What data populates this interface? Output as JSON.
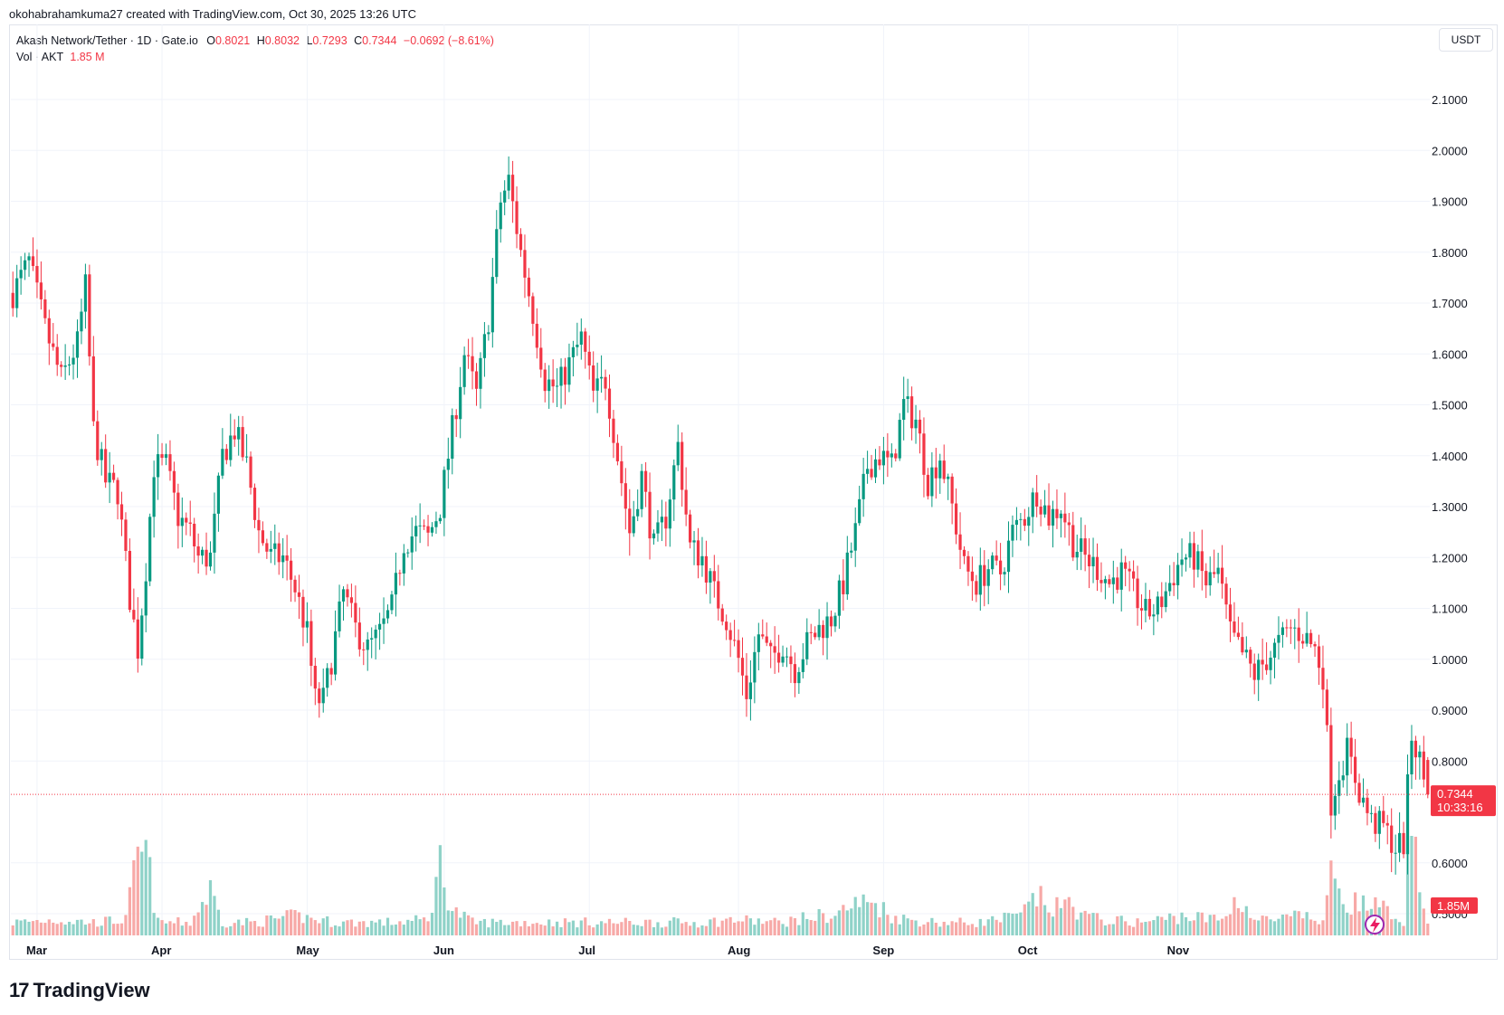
{
  "header": {
    "created_text": "okohabrahamkuma27 created with TradingView.com, Oct 30, 2025 13:26 UTC"
  },
  "legend": {
    "symbol": "Akash Network/Tether · 1D · Gate.io",
    "open_label": "O",
    "open": "0.8021",
    "high_label": "H",
    "high": "0.8032",
    "low_label": "L",
    "low": "0.7293",
    "close_label": "C",
    "close": "0.7344",
    "change": "−0.0692 (−8.61%)",
    "vol_label": "Vol · AKT",
    "vol_value": "1.85 M"
  },
  "currency_button": "USDT",
  "brand": "TradingView",
  "colors": {
    "up": "#089981",
    "down": "#f23645",
    "up_vol": "#8fd2c8",
    "down_vol": "#f7a9a7"
  },
  "chart_data": {
    "type": "candlestick",
    "yticks": [
      "0.5000",
      "0.6000",
      "0.8000",
      "0.9000",
      "1.0000",
      "1.1000",
      "1.2000",
      "1.3000",
      "1.4000",
      "1.5000",
      "1.6000",
      "1.7000",
      "1.8000",
      "1.9000",
      "2.0000",
      "2.1000"
    ],
    "ylim": [
      0.5,
      2.1
    ],
    "xticks": [
      "Mar",
      "Apr",
      "May",
      "Jun",
      "Jul",
      "Aug",
      "Sep",
      "Oct",
      "Nov"
    ],
    "last_price_label": "0.7344",
    "countdown_label": "10:33:16",
    "volume_label": "1.85M",
    "close_path": [
      [
        0,
        1.72
      ],
      [
        4,
        1.78
      ],
      [
        8,
        1.65
      ],
      [
        12,
        1.55
      ],
      [
        16,
        1.62
      ],
      [
        18,
        1.73
      ],
      [
        20,
        1.45
      ],
      [
        23,
        1.35
      ],
      [
        26,
        1.33
      ],
      [
        29,
        1.12
      ],
      [
        31,
        1.02
      ],
      [
        33,
        1.18
      ],
      [
        35,
        1.38
      ],
      [
        38,
        1.38
      ],
      [
        41,
        1.28
      ],
      [
        44,
        1.25
      ],
      [
        46,
        1.2
      ],
      [
        49,
        1.2
      ],
      [
        52,
        1.4
      ],
      [
        55,
        1.45
      ],
      [
        58,
        1.38
      ],
      [
        61,
        1.25
      ],
      [
        64,
        1.2
      ],
      [
        67,
        1.2
      ],
      [
        70,
        1.14
      ],
      [
        73,
        1.05
      ],
      [
        75,
        0.92
      ],
      [
        77,
        0.92
      ],
      [
        79,
        1.0
      ],
      [
        82,
        1.13
      ],
      [
        85,
        1.06
      ],
      [
        88,
        1.02
      ],
      [
        91,
        1.05
      ],
      [
        94,
        1.1
      ],
      [
        97,
        1.23
      ],
      [
        100,
        1.25
      ],
      [
        103,
        1.24
      ],
      [
        106,
        1.3
      ],
      [
        109,
        1.45
      ],
      [
        112,
        1.6
      ],
      [
        115,
        1.52
      ],
      [
        118,
        1.67
      ],
      [
        121,
        1.9
      ],
      [
        123,
        1.94
      ],
      [
        126,
        1.8
      ],
      [
        129,
        1.68
      ],
      [
        132,
        1.55
      ],
      [
        135,
        1.53
      ],
      [
        138,
        1.58
      ],
      [
        141,
        1.63
      ],
      [
        144,
        1.52
      ],
      [
        147,
        1.55
      ],
      [
        150,
        1.4
      ],
      [
        153,
        1.25
      ],
      [
        156,
        1.36
      ],
      [
        159,
        1.22
      ],
      [
        162,
        1.28
      ],
      [
        165,
        1.42
      ],
      [
        168,
        1.22
      ],
      [
        171,
        1.2
      ],
      [
        174,
        1.13
      ],
      [
        177,
        1.08
      ],
      [
        180,
        1.0
      ],
      [
        182,
        0.93
      ],
      [
        185,
        1.05
      ],
      [
        188,
        1.0
      ],
      [
        191,
        1.03
      ],
      [
        194,
        0.98
      ],
      [
        197,
        1.03
      ],
      [
        200,
        1.06
      ],
      [
        203,
        1.08
      ],
      [
        206,
        1.15
      ],
      [
        209,
        1.25
      ],
      [
        212,
        1.38
      ],
      [
        215,
        1.4
      ],
      [
        218,
        1.38
      ],
      [
        221,
        1.5
      ],
      [
        224,
        1.47
      ],
      [
        227,
        1.35
      ],
      [
        230,
        1.4
      ],
      [
        233,
        1.3
      ],
      [
        236,
        1.18
      ],
      [
        239,
        1.15
      ],
      [
        242,
        1.18
      ],
      [
        245,
        1.17
      ],
      [
        248,
        1.25
      ],
      [
        251,
        1.28
      ],
      [
        254,
        1.33
      ],
      [
        257,
        1.28
      ],
      [
        260,
        1.3
      ],
      [
        263,
        1.23
      ],
      [
        266,
        1.2
      ],
      [
        269,
        1.18
      ],
      [
        272,
        1.15
      ],
      [
        275,
        1.17
      ],
      [
        278,
        1.13
      ],
      [
        281,
        1.09
      ],
      [
        284,
        1.1
      ],
      [
        287,
        1.15
      ],
      [
        290,
        1.2
      ],
      [
        293,
        1.2
      ],
      [
        296,
        1.15
      ],
      [
        299,
        1.17
      ],
      [
        302,
        1.05
      ],
      [
        305,
        1.01
      ],
      [
        308,
        0.97
      ],
      [
        311,
        1.0
      ],
      [
        314,
        1.03
      ],
      [
        317,
        1.06
      ],
      [
        320,
        1.05
      ],
      [
        323,
        1.02
      ],
      [
        325,
        0.97
      ],
      [
        327,
        0.72
      ],
      [
        329,
        0.78
      ],
      [
        331,
        0.82
      ],
      [
        334,
        0.74
      ],
      [
        337,
        0.68
      ],
      [
        340,
        0.67
      ],
      [
        343,
        0.63
      ],
      [
        345,
        0.64
      ],
      [
        347,
        0.85
      ],
      [
        349,
        0.8
      ],
      [
        351,
        0.73
      ]
    ],
    "volume_path": [
      [
        0,
        0.1
      ],
      [
        10,
        0.12
      ],
      [
        20,
        0.1
      ],
      [
        28,
        0.12
      ],
      [
        31,
        0.6
      ],
      [
        33,
        0.63
      ],
      [
        36,
        0.1
      ],
      [
        44,
        0.1
      ],
      [
        49,
        0.35
      ],
      [
        52,
        0.1
      ],
      [
        60,
        0.1
      ],
      [
        70,
        0.15
      ],
      [
        80,
        0.1
      ],
      [
        94,
        0.1
      ],
      [
        103,
        0.12
      ],
      [
        106,
        0.55
      ],
      [
        109,
        0.2
      ],
      [
        114,
        0.1
      ],
      [
        130,
        0.1
      ],
      [
        142,
        0.1
      ],
      [
        152,
        0.1
      ],
      [
        160,
        0.1
      ],
      [
        171,
        0.1
      ],
      [
        179,
        0.12
      ],
      [
        190,
        0.1
      ],
      [
        200,
        0.15
      ],
      [
        204,
        0.15
      ],
      [
        206,
        0.2
      ],
      [
        210,
        0.25
      ],
      [
        214,
        0.25
      ],
      [
        218,
        0.15
      ],
      [
        222,
        0.12
      ],
      [
        230,
        0.1
      ],
      [
        240,
        0.1
      ],
      [
        250,
        0.15
      ],
      [
        254,
        0.3
      ],
      [
        258,
        0.2
      ],
      [
        262,
        0.25
      ],
      [
        266,
        0.15
      ],
      [
        270,
        0.12
      ],
      [
        280,
        0.1
      ],
      [
        290,
        0.15
      ],
      [
        300,
        0.12
      ],
      [
        304,
        0.3
      ],
      [
        308,
        0.12
      ],
      [
        314,
        0.12
      ],
      [
        320,
        0.15
      ],
      [
        325,
        0.1
      ],
      [
        326,
        0.35
      ],
      [
        328,
        0.48
      ],
      [
        330,
        0.3
      ],
      [
        333,
        0.25
      ],
      [
        340,
        0.2
      ],
      [
        343,
        0.1
      ],
      [
        345,
        0.12
      ],
      [
        346,
        0.7
      ],
      [
        348,
        0.55
      ],
      [
        350,
        0.15
      ],
      [
        351,
        0.1
      ]
    ]
  }
}
